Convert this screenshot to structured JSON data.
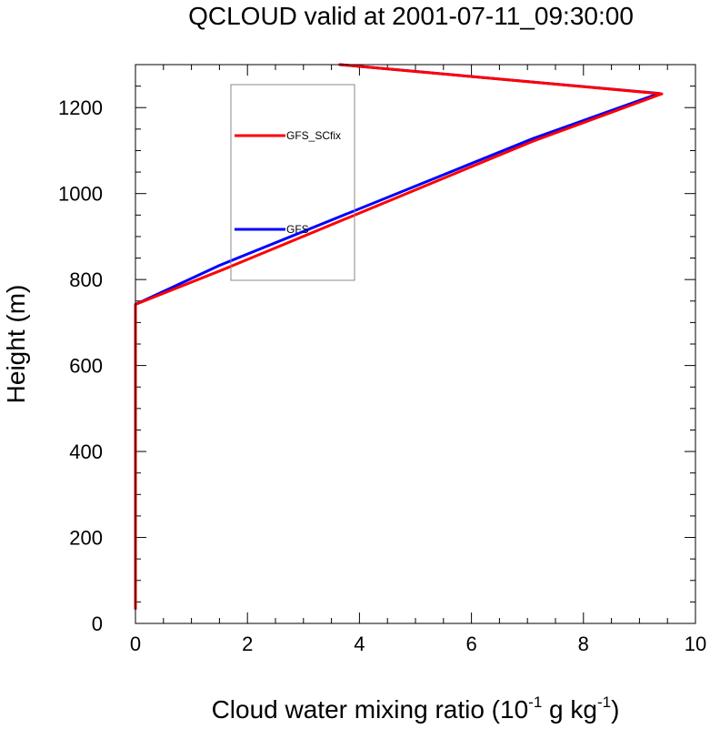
{
  "chart_data": {
    "type": "line",
    "title": "QCLOUD valid at 2001-07-11_09:30:00",
    "xlabel": {
      "text": "Cloud water mixing ratio (10",
      "sup1": "-1",
      "mid": " g kg",
      "sup2": "-1",
      "end": ")"
    },
    "ylabel": "Height (m)",
    "xlim": [
      0,
      10
    ],
    "ylim": [
      0,
      1300
    ],
    "xticks": [
      0,
      2,
      4,
      6,
      8,
      10
    ],
    "yticks": [
      0,
      200,
      400,
      600,
      800,
      1000,
      1200
    ],
    "xtick_labels": [
      "0",
      "2",
      "4",
      "6",
      "8",
      "10"
    ],
    "ytick_labels": [
      "0",
      "200",
      "400",
      "600",
      "800",
      "1000",
      "1200"
    ],
    "grid": false,
    "legend": "top-left inside",
    "series": [
      {
        "name": "GFS",
        "color": "#0000ff",
        "points": [
          [
            0,
            35
          ],
          [
            0,
            742
          ],
          [
            1.5,
            833
          ],
          [
            7.1,
            1128
          ],
          [
            9.35,
            1233
          ],
          [
            3.65,
            1300
          ]
        ]
      },
      {
        "name": "GFS_SCfix",
        "color": "#ff0000",
        "points": [
          [
            0,
            35
          ],
          [
            0,
            742
          ],
          [
            1.6,
            825
          ],
          [
            7.1,
            1122
          ],
          [
            9.4,
            1232
          ],
          [
            3.65,
            1300
          ]
        ]
      }
    ]
  }
}
